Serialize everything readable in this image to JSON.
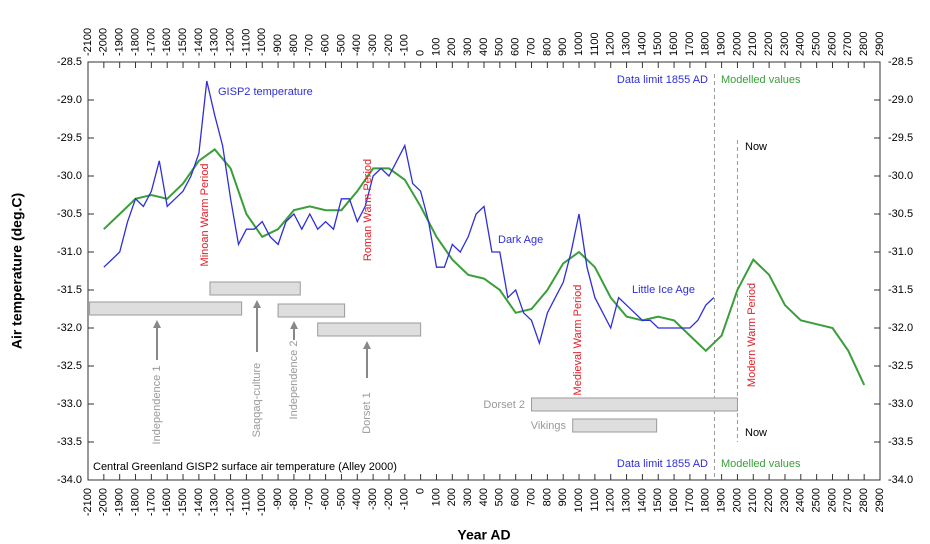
{
  "chart_data": {
    "type": "line",
    "caption": "Central Greenland GISP2 surface air temperature (Alley 2000)",
    "xlabel": "Year AD",
    "ylabel": "Air temperature (deg.C)",
    "xlim": [
      -2100,
      2900
    ],
    "xticks": [
      -2100,
      -2000,
      -1900,
      -1800,
      -1700,
      -1600,
      -1500,
      -1400,
      -1300,
      -1200,
      -1100,
      -1000,
      -900,
      -800,
      -700,
      -600,
      -500,
      -400,
      -300,
      -200,
      -100,
      0,
      100,
      200,
      300,
      400,
      500,
      600,
      700,
      800,
      900,
      1000,
      1100,
      1200,
      1300,
      1400,
      1500,
      1600,
      1700,
      1800,
      1900,
      2000,
      2100,
      2200,
      2300,
      2400,
      2500,
      2600,
      2700,
      2800,
      2900
    ],
    "ylim": [
      -34,
      -28.5
    ],
    "yticks": [
      -28.5,
      {
        "value": -29,
        "label": "-29.0"
      },
      -29.5,
      {
        "value": -30,
        "label": "-30.0"
      },
      -30.5,
      {
        "value": -31,
        "label": "-31.0"
      },
      -31.5,
      {
        "value": -32,
        "label": "-32.0"
      },
      -32.5,
      {
        "value": -33,
        "label": "-33.0"
      },
      -33.5,
      {
        "value": -34,
        "label": "-34.0"
      }
    ],
    "series": [
      {
        "name": "GISP2 temperature",
        "color": "#2f2fd8",
        "x": [
          -2000,
          -1950,
          -1900,
          -1850,
          -1800,
          -1750,
          -1700,
          -1650,
          -1600,
          -1550,
          -1500,
          -1450,
          -1400,
          -1350,
          -1300,
          -1250,
          -1200,
          -1150,
          -1100,
          -1050,
          -1000,
          -950,
          -900,
          -850,
          -800,
          -750,
          -700,
          -650,
          -600,
          -550,
          -500,
          -450,
          -400,
          -350,
          -300,
          -250,
          -200,
          -150,
          -100,
          -50,
          0,
          50,
          100,
          150,
          200,
          250,
          300,
          350,
          400,
          450,
          500,
          550,
          600,
          650,
          700,
          750,
          800,
          850,
          900,
          950,
          1000,
          1050,
          1100,
          1150,
          1200,
          1250,
          1300,
          1350,
          1400,
          1450,
          1500,
          1550,
          1600,
          1650,
          1700,
          1750,
          1800,
          1850
        ],
        "values": [
          -31.2,
          -31.1,
          -31.0,
          -30.6,
          -30.3,
          -30.4,
          -30.2,
          -29.8,
          -30.4,
          -30.3,
          -30.2,
          -30.0,
          -29.7,
          -28.75,
          -29.2,
          -29.6,
          -30.3,
          -30.9,
          -30.7,
          -30.7,
          -30.6,
          -30.8,
          -30.9,
          -30.6,
          -30.5,
          -30.7,
          -30.5,
          -30.7,
          -30.6,
          -30.7,
          -30.3,
          -30.3,
          -30.6,
          -30.4,
          -30.0,
          -29.9,
          -30.0,
          -29.8,
          -29.6,
          -30.1,
          -30.2,
          -30.6,
          -31.2,
          -31.2,
          -30.9,
          -31.0,
          -30.8,
          -30.5,
          -30.4,
          -31.0,
          -31.0,
          -31.6,
          -31.5,
          -31.8,
          -31.9,
          -32.2,
          -31.8,
          -31.6,
          -31.4,
          -31.0,
          -30.5,
          -31.2,
          -31.6,
          -31.8,
          -32.0,
          -31.6,
          -31.7,
          -31.8,
          -31.9,
          -31.9,
          -32.0,
          -32.0,
          -32.0,
          -32.0,
          -32.0,
          -31.9,
          -31.7,
          -31.6
        ]
      },
      {
        "color": "#3a9e3a",
        "x": [
          -2000,
          -1900,
          -1800,
          -1700,
          -1600,
          -1500,
          -1400,
          -1300,
          -1200,
          -1100,
          -1000,
          -900,
          -800,
          -700,
          -600,
          -500,
          -400,
          -300,
          -200,
          -100,
          0,
          100,
          200,
          300,
          400,
          500,
          600,
          700,
          800,
          900,
          1000,
          1100,
          1200,
          1300,
          1400,
          1500,
          1600,
          1700,
          1800,
          1900,
          2000,
          2100,
          2200,
          2300,
          2400,
          2500,
          2600,
          2700,
          2800
        ],
        "values": [
          -30.7,
          -30.5,
          -30.3,
          -30.25,
          -30.3,
          -30.1,
          -29.8,
          -29.65,
          -29.9,
          -30.5,
          -30.8,
          -30.7,
          -30.45,
          -30.4,
          -30.45,
          -30.45,
          -30.2,
          -29.9,
          -29.9,
          -30.05,
          -30.4,
          -30.8,
          -31.1,
          -31.3,
          -31.35,
          -31.5,
          -31.8,
          -31.75,
          -31.5,
          -31.15,
          -31.0,
          -31.2,
          -31.6,
          -31.85,
          -31.9,
          -31.85,
          -31.9,
          -32.1,
          -32.3,
          -32.1,
          -31.5,
          -31.1,
          -31.3,
          -31.7,
          -31.9,
          -31.95,
          -32.0,
          -32.3,
          -32.75
        ]
      }
    ],
    "data_limit": 1855,
    "now_year": 2000,
    "periods": [
      {
        "label": "Independence 1",
        "start": -2090,
        "end": -1130
      },
      {
        "label": "Saqqaq-culture",
        "start": -1330,
        "end": -760
      },
      {
        "label": "Independence 2",
        "start": -900,
        "end": -480
      },
      {
        "label": "Dorset 1",
        "start": -650,
        "end": 0
      },
      {
        "label": "Dorset 2",
        "start": 700,
        "end": 2000
      },
      {
        "label": "Vikings",
        "start": 960,
        "end": 1490
      }
    ],
    "annotations": [
      {
        "text": "Minoan Warm Period",
        "color": "#e0202a"
      },
      {
        "text": "Roman Warm Period",
        "color": "#e0202a"
      },
      {
        "text": "Medieval Warm Period",
        "color": "#e0202a"
      },
      {
        "text": "Modern Warm Period",
        "color": "#e0202a"
      },
      {
        "text": "Dark Age",
        "color": "#2f2fd8"
      },
      {
        "text": "Little Ice Age",
        "color": "#2f2fd8"
      },
      {
        "text": "Data limit 1855 AD",
        "color": "#2f2fd8"
      },
      {
        "text": "Modelled values",
        "color": "#3a9e3a"
      },
      {
        "text": "Now",
        "color": "#000000"
      },
      {
        "text": "Data limit 1855 AD",
        "color": "#2f2fd8"
      },
      {
        "text": "Modelled values",
        "color": "#3a9e3a"
      },
      {
        "text": "Now",
        "color": "#000000"
      }
    ]
  }
}
